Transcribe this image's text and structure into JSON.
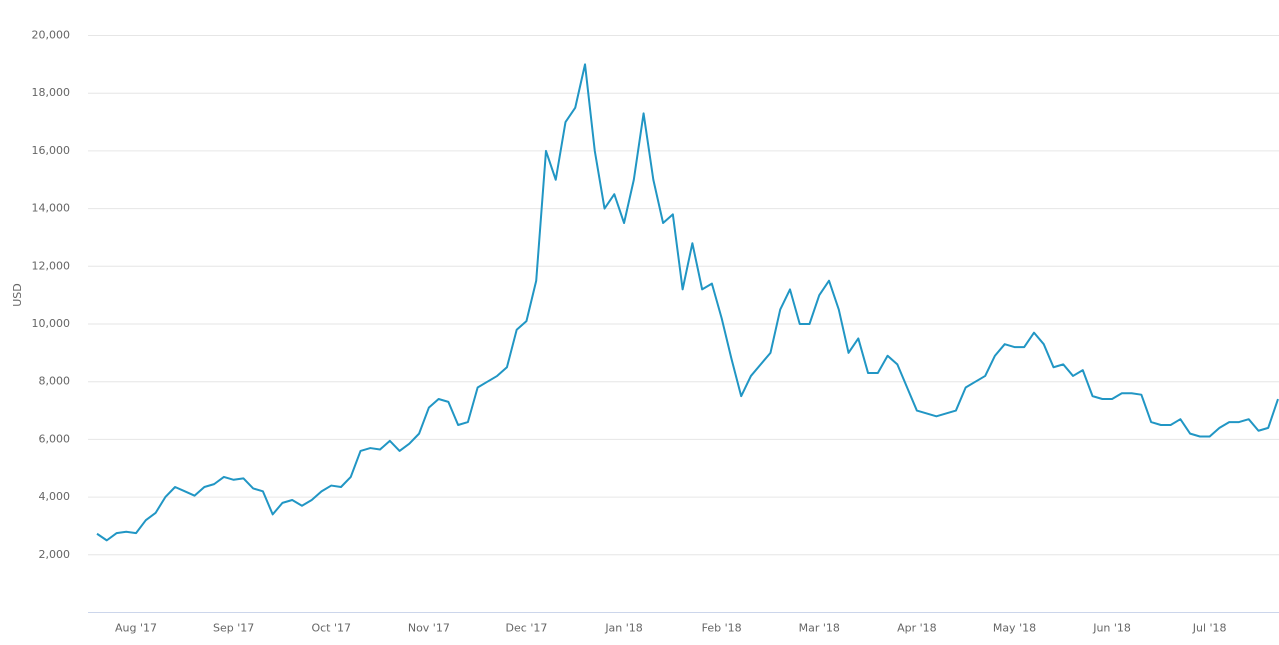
{
  "chart_data": {
    "type": "line",
    "y_label": "USD",
    "categories": [
      null,
      null,
      null,
      null,
      "Aug '17",
      null,
      null,
      null,
      null,
      null,
      null,
      null,
      null,
      null,
      "Sep '17",
      null,
      null,
      null,
      null,
      null,
      null,
      null,
      null,
      null,
      "Oct '17",
      null,
      null,
      null,
      null,
      null,
      null,
      null,
      null,
      null,
      "Nov '17",
      null,
      null,
      null,
      null,
      null,
      null,
      null,
      null,
      null,
      "Dec '17",
      null,
      null,
      null,
      null,
      null,
      null,
      null,
      null,
      null,
      "Jan '18",
      null,
      null,
      null,
      null,
      null,
      null,
      null,
      null,
      null,
      "Feb '18",
      null,
      null,
      null,
      null,
      null,
      null,
      null,
      null,
      null,
      "Mar '18",
      null,
      null,
      null,
      null,
      null,
      null,
      null,
      null,
      null,
      "Apr '18",
      null,
      null,
      null,
      null,
      null,
      null,
      null,
      null,
      null,
      "May '18",
      null,
      null,
      null,
      null,
      null,
      null,
      null,
      null,
      null,
      "Jun '18",
      null,
      null,
      null,
      null,
      null,
      null,
      null,
      null,
      null,
      "Jul '18",
      null,
      null,
      null,
      null,
      null,
      null,
      null
    ],
    "values": [
      2730,
      2500,
      2750,
      2800,
      2750,
      3200,
      3450,
      4000,
      4350,
      4200,
      4050,
      4350,
      4450,
      4700,
      4600,
      4650,
      4300,
      4200,
      3400,
      3800,
      3900,
      3700,
      3900,
      4200,
      4400,
      4350,
      4700,
      5600,
      5700,
      5650,
      5950,
      5600,
      5850,
      6200,
      7100,
      7400,
      7300,
      6500,
      6600,
      7800,
      8000,
      8200,
      8500,
      9800,
      10100,
      11500,
      16000,
      15000,
      17000,
      17500,
      19000,
      16000,
      14000,
      14500,
      13500,
      15000,
      17300,
      15000,
      13500,
      13800,
      11200,
      12800,
      11200,
      11400,
      10200,
      8800,
      7500,
      8200,
      8600,
      9000,
      10500,
      11200,
      10000,
      10000,
      11000,
      11500,
      10500,
      9000,
      9500,
      8300,
      8300,
      8900,
      8600,
      7800,
      7000,
      6900,
      6800,
      6900,
      7000,
      7800,
      8000,
      8200,
      8900,
      9300,
      9200,
      9200,
      9700,
      9300,
      8500,
      8600,
      8200,
      8400,
      7500,
      7400,
      7400,
      7600,
      7600,
      7550,
      6600,
      6500,
      6500,
      6700,
      6200,
      6100,
      6100,
      6400,
      6600,
      6600,
      6700,
      6300,
      6400,
      7400
    ],
    "color": "#2196c4",
    "ylim": [
      0,
      20000
    ],
    "yticks": [
      {
        "value": 2000,
        "label": "2,000"
      },
      {
        "value": 4000,
        "label": "4,000"
      },
      {
        "value": 6000,
        "label": "6,000"
      },
      {
        "value": 8000,
        "label": "8,000"
      },
      {
        "value": 10000,
        "label": "10,000"
      },
      {
        "value": 12000,
        "label": "12,000"
      },
      {
        "value": 14000,
        "label": "14,000"
      },
      {
        "value": 16000,
        "label": "16,000"
      },
      {
        "value": 18000,
        "label": "18,000"
      },
      {
        "value": 20000,
        "label": "20,000"
      }
    ],
    "grid": true
  }
}
